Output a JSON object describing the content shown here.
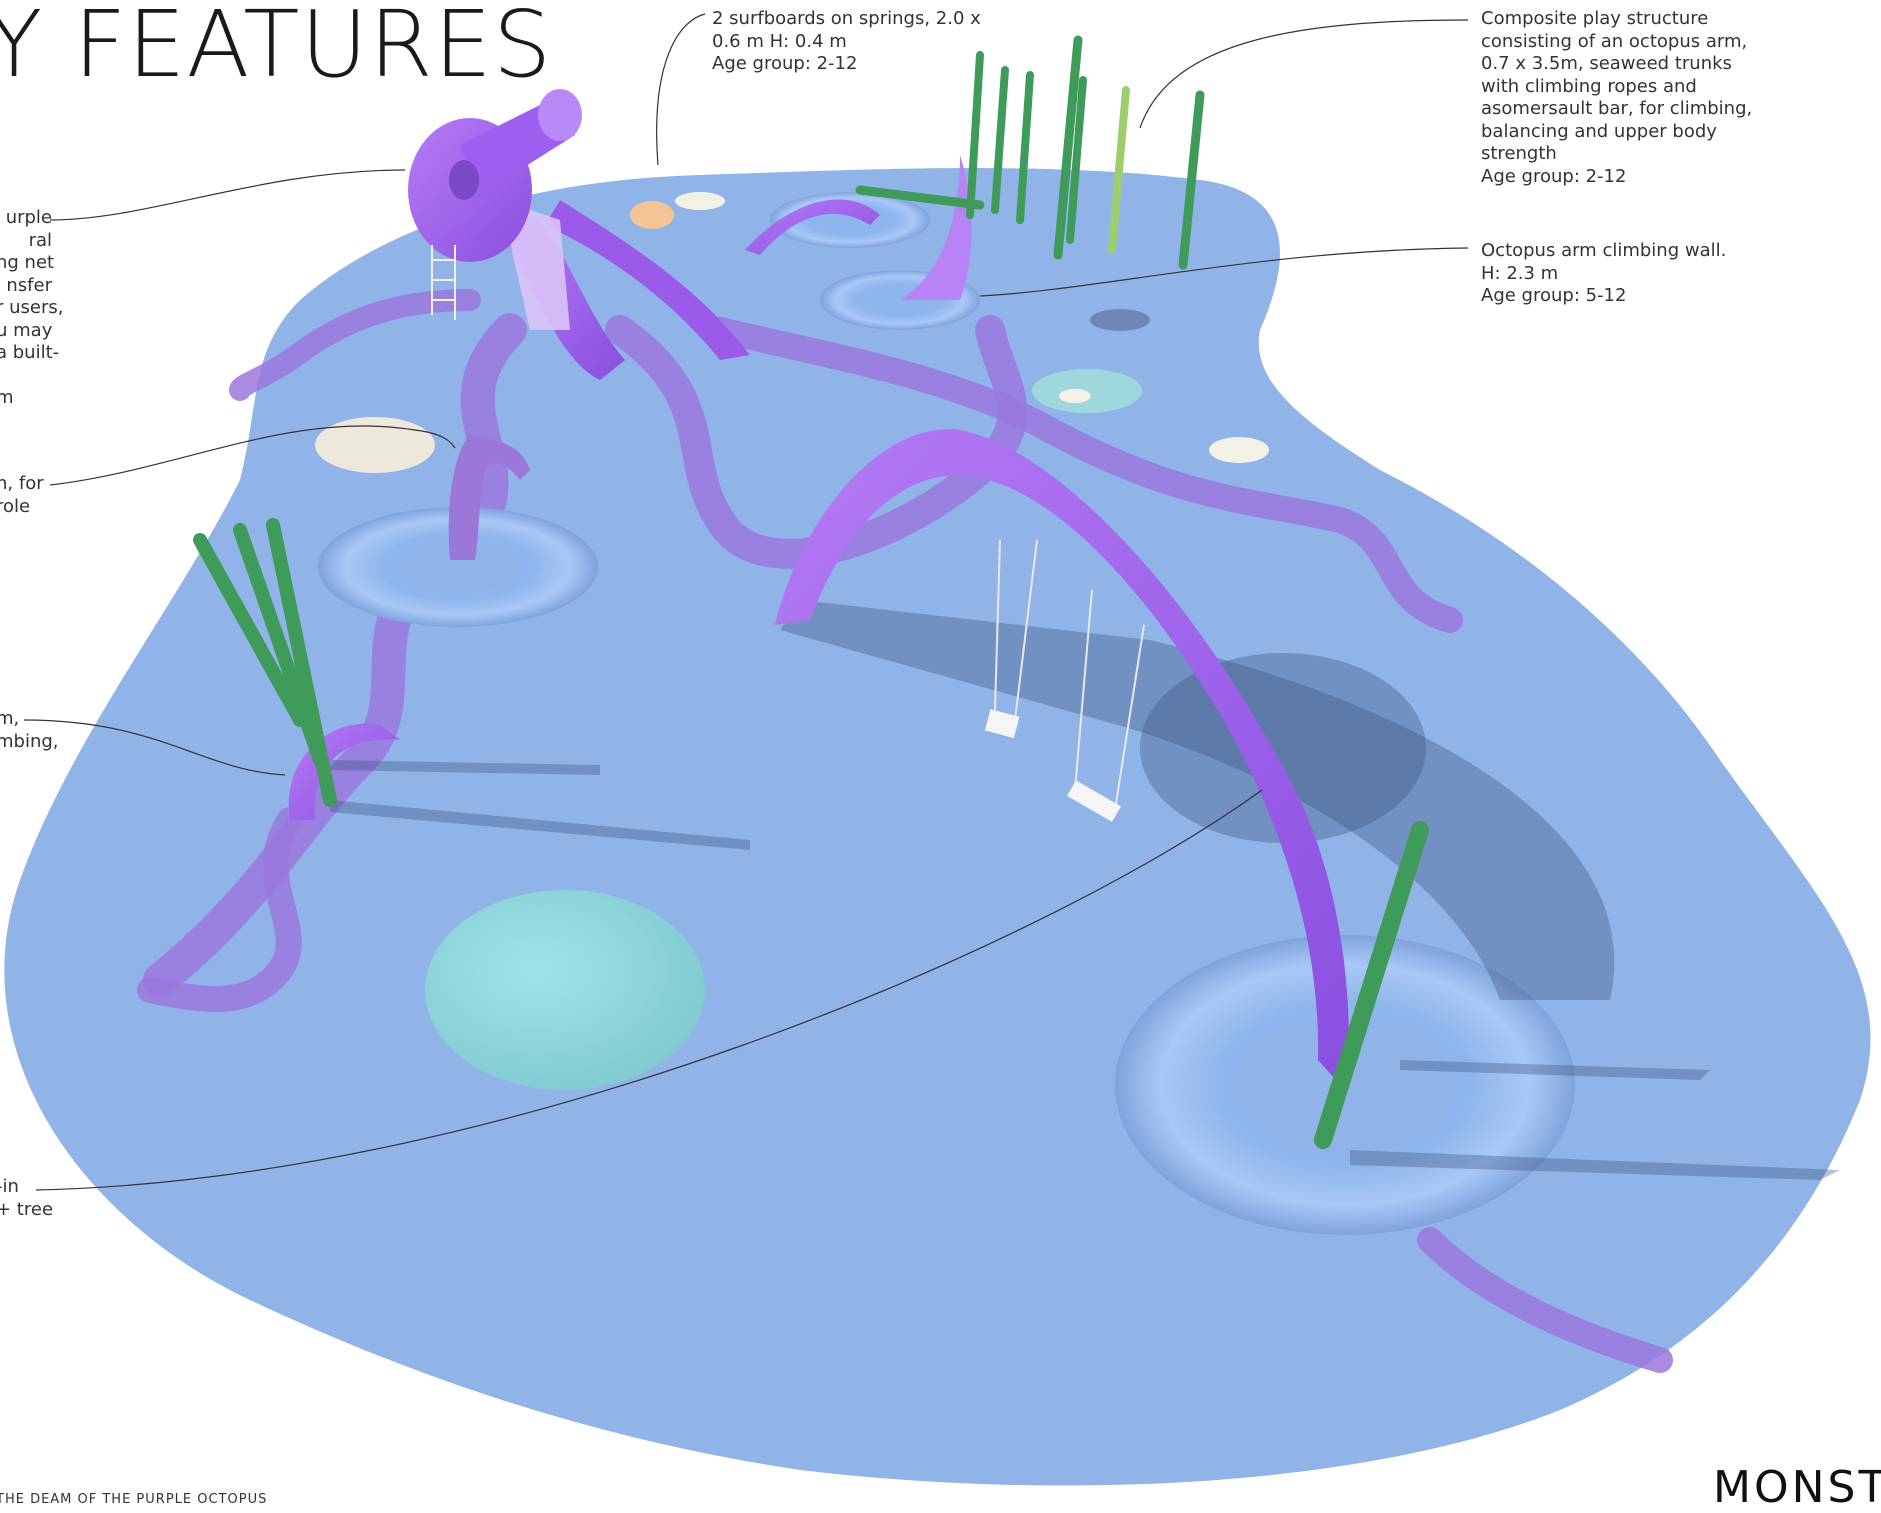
{
  "title": "Y FEATURES",
  "annotations": {
    "surfboards": [
      "2 surfboards on springs, 2.0 x",
      "0.6 m H: 0.4 m",
      "Age group: 2-12"
    ],
    "composite": [
      "Composite play structure",
      "consisting of an octopus arm,",
      "0.7 x 3.5m, seaweed trunks",
      "with climbing ropes and",
      "asomersault bar, for climbing,",
      "balancing and upper body",
      "strength",
      "Age group: 2-12"
    ],
    "climbing_wall": [
      "Octopus arm climbing wall.",
      "H: 2.3 m",
      "Age group: 5-12"
    ],
    "left_1": [
      "urple",
      "ral",
      "ng net",
      "nsfer",
      "r users,",
      "u may",
      "a built-",
      "",
      "m"
    ],
    "left_2": [
      "n, for",
      "role"
    ],
    "left_3": [
      "m,",
      "mbing,"
    ],
    "left_4": [
      "-in",
      "+ tree"
    ]
  },
  "footer": "THE DEAM OF THE PURPLE OCTOPUS",
  "brand": "MONST"
}
